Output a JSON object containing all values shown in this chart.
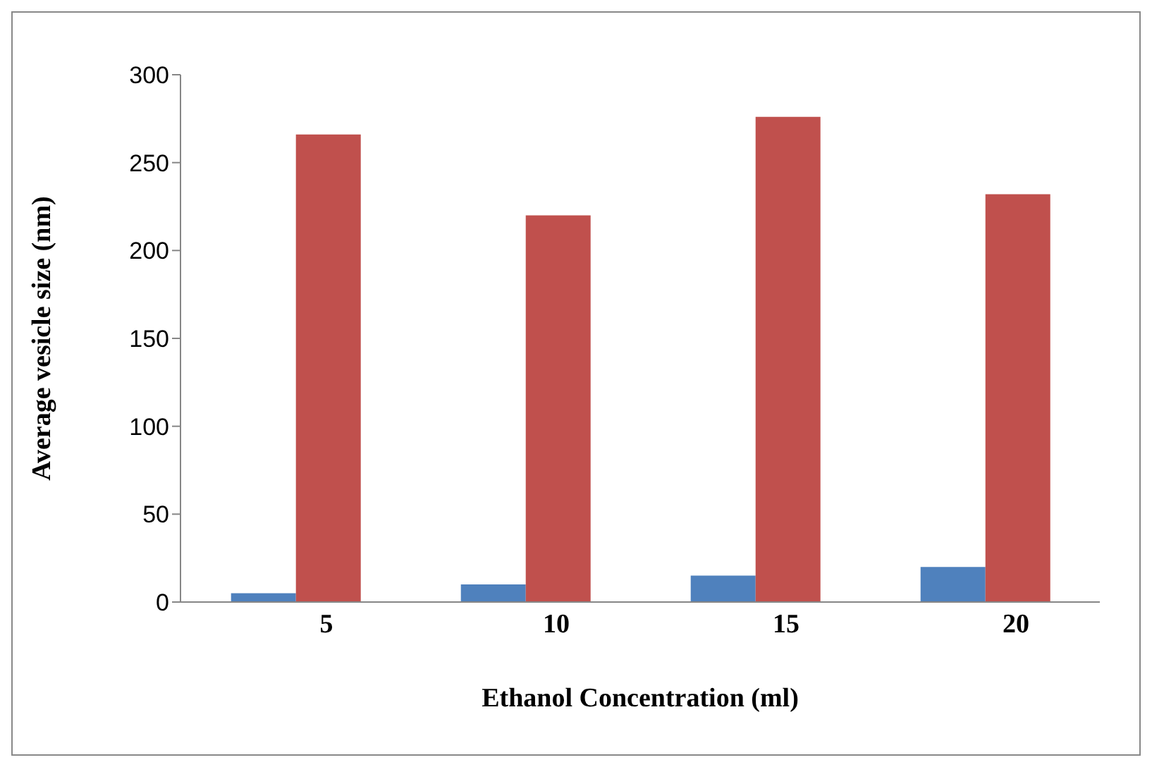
{
  "chart_data": {
    "type": "bar",
    "xlabel": "Ethanol Concentration (ml)",
    "ylabel": "Average vesicle size (nm)",
    "categories": [
      "5",
      "10",
      "15",
      "20"
    ],
    "series": [
      {
        "color": "#4f81bd",
        "values": [
          5,
          10,
          15,
          20
        ]
      },
      {
        "color": "#c0504d",
        "values": [
          266,
          220,
          276,
          232
        ]
      }
    ],
    "ylim": [
      0,
      300
    ],
    "yticks": [
      0,
      50,
      100,
      150,
      200,
      250,
      300
    ],
    "grid": false,
    "legend": false
  }
}
